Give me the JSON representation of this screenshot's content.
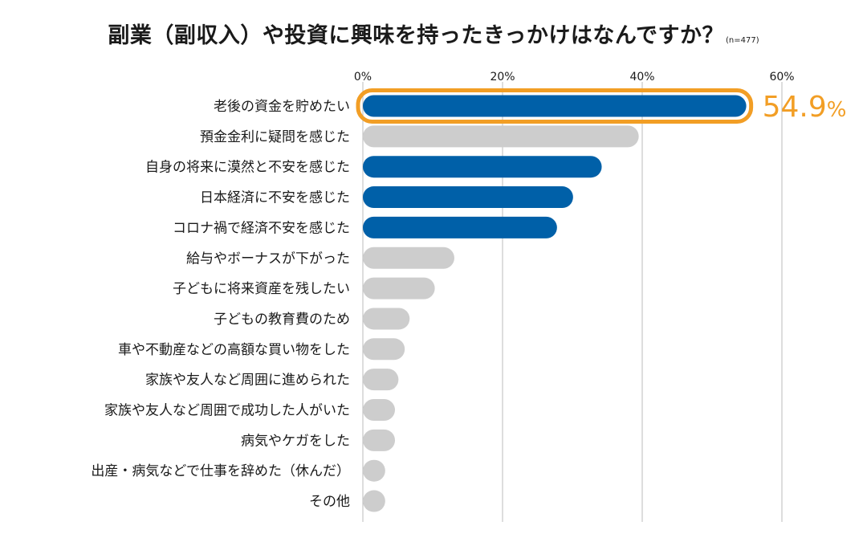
{
  "title": "副業（副収入）や投資に興味を持ったきっかけはなんですか？",
  "sample_note": "(n=477)",
  "colors": {
    "highlight": "#0060A8",
    "other": "#CDCDCD",
    "callout": "#F29E25",
    "grid": "#BBBBBB",
    "text": "#1A1A1A"
  },
  "chart_data": {
    "type": "bar",
    "orientation": "horizontal",
    "title": "副業（副収入）や投資に興味を持ったきっかけはなんですか？",
    "xlim": [
      0,
      60
    ],
    "xticks": [
      "0%",
      "20%",
      "40%",
      "60%"
    ],
    "xtick_values": [
      0,
      20,
      40,
      60
    ],
    "grid": true,
    "categories": [
      "老後の資金を貯めたい",
      "預金金利に疑問を感じた",
      "自身の将来に漠然と不安を感じた",
      "日本経済に不安を感じた",
      "コロナ禍で経済不安を感じた",
      "給与やボーナスが下がった",
      "子どもに将来資産を残したい",
      "子どもの教育費のため",
      "車や不動産などの高額な買い物をした",
      "家族や友人など周囲に進められた",
      "家族や友人など周囲で成功した人がいた",
      "病気やケガをした",
      "出産・病気などで仕事を辞めた（休んだ）",
      "その他"
    ],
    "values": [
      54.9,
      39.5,
      34.2,
      30.1,
      27.8,
      13.1,
      10.3,
      6.7,
      6.0,
      5.1,
      4.6,
      4.6,
      3.2,
      3.2
    ],
    "highlighted": [
      true,
      false,
      true,
      true,
      true,
      false,
      false,
      false,
      false,
      false,
      false,
      false,
      false,
      false
    ],
    "callout": {
      "number": "54.9",
      "unit": "%"
    }
  }
}
